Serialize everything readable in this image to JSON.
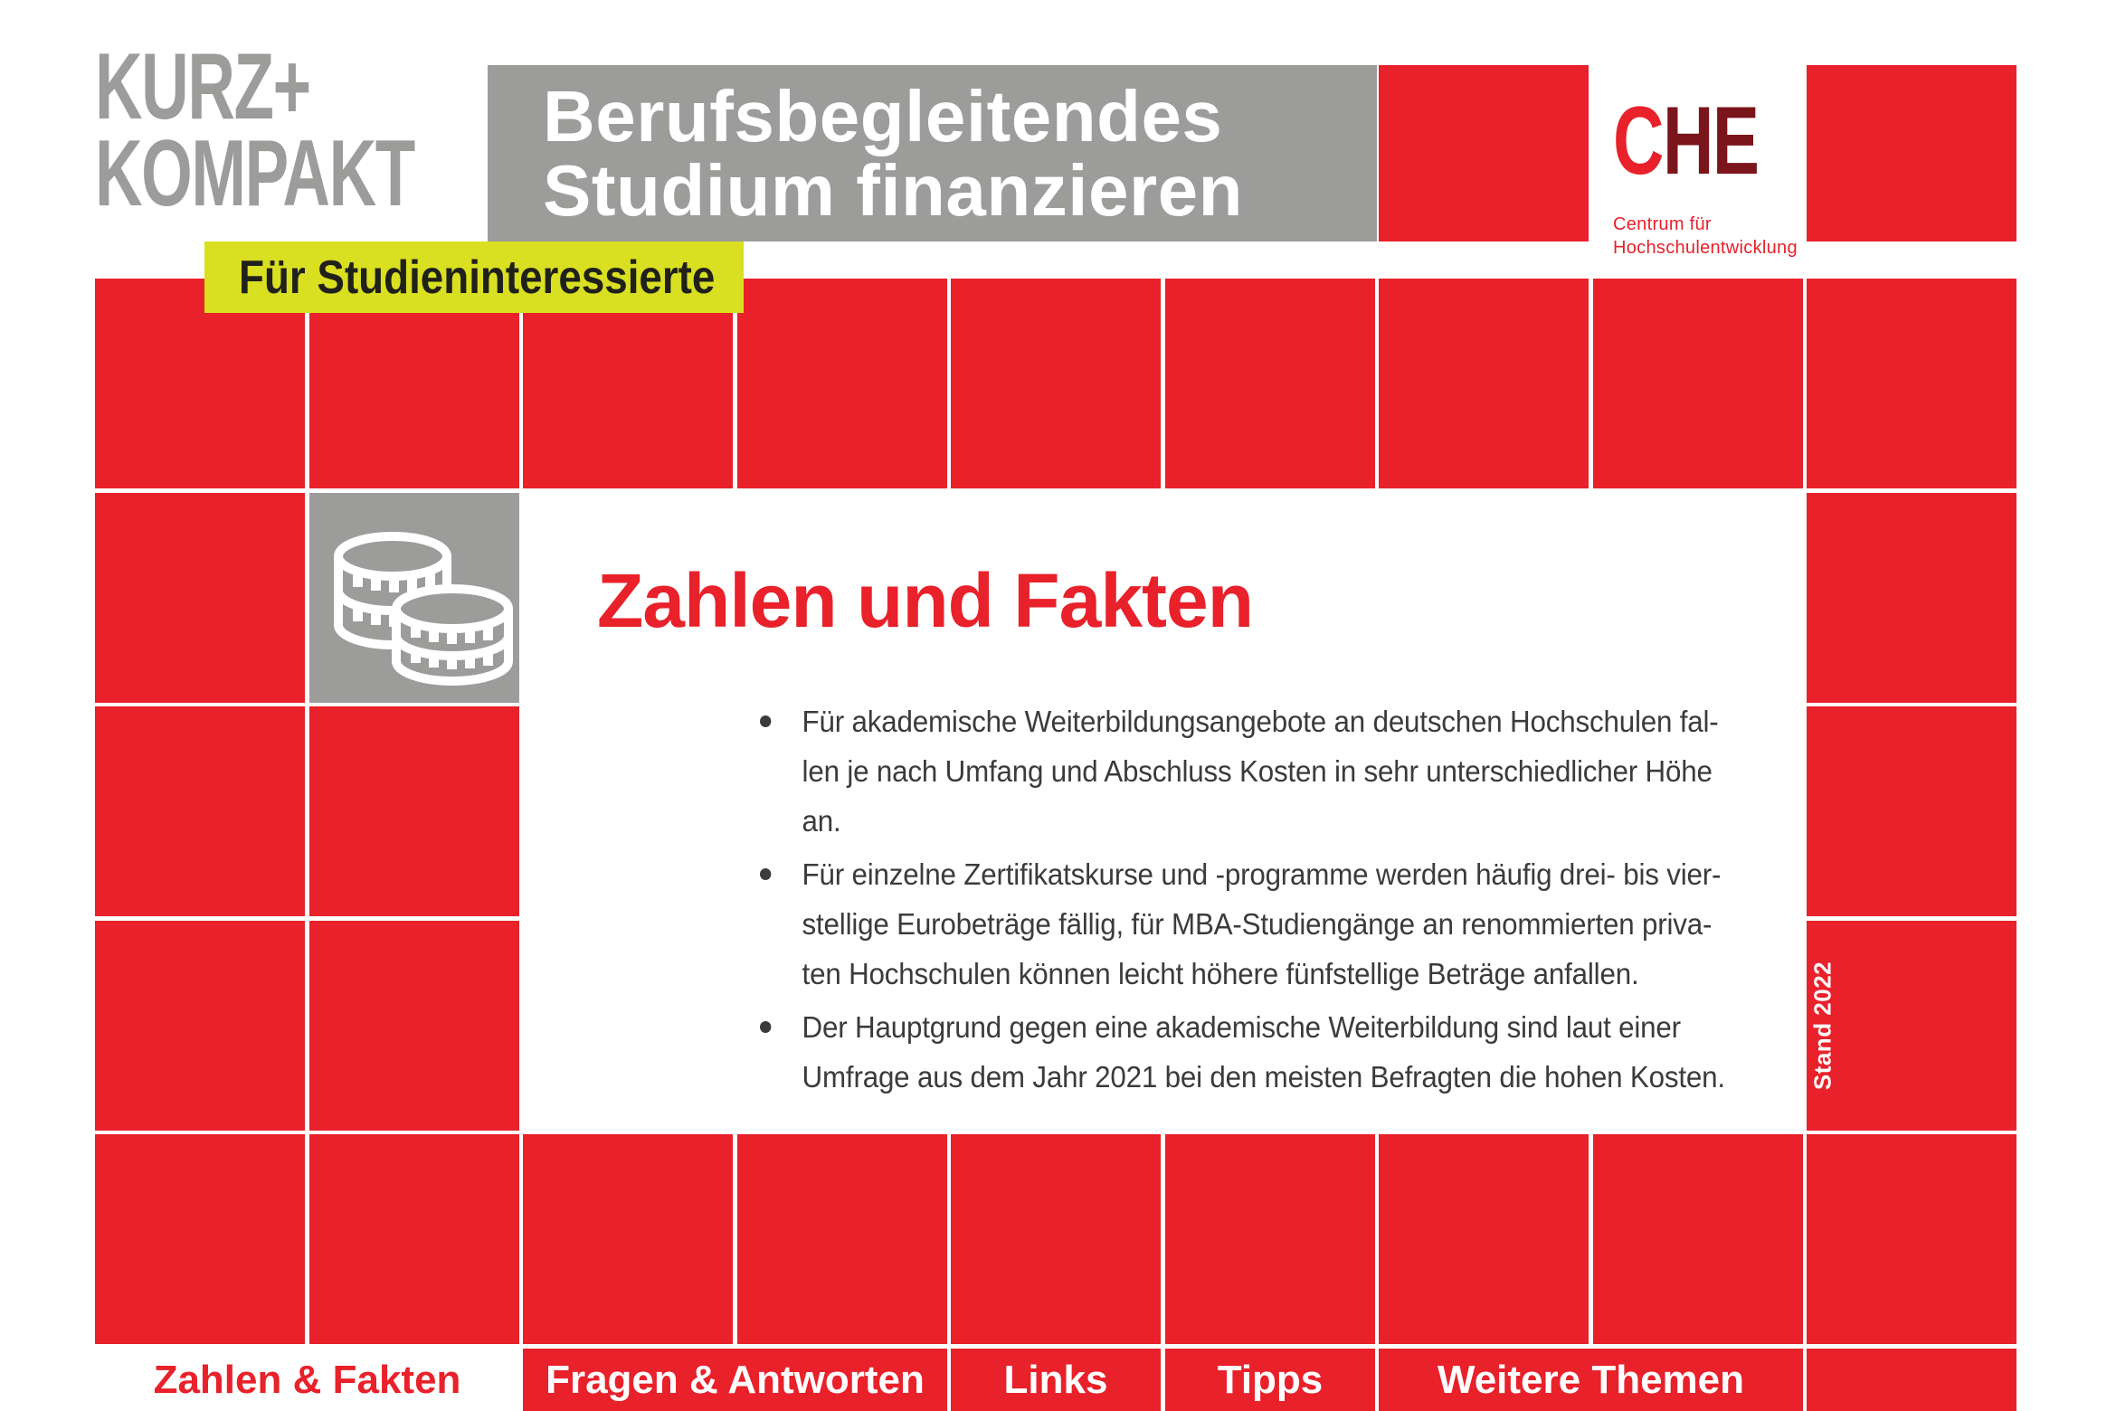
{
  "brand": {
    "line1": "KURZ+",
    "line2": "KOMPAKT"
  },
  "audience_tag": "Für Studieninteressierte",
  "doc_title": {
    "line1": "Berufsbegleitendes",
    "line2": "Studium finanzieren"
  },
  "che_logo": {
    "c": "C",
    "he": "HE",
    "subline1": "Centrum für",
    "subline2": "Hochschulentwicklung"
  },
  "section": {
    "icon": "coins-icon",
    "heading": "Zahlen und Fakten",
    "bullets": [
      {
        "lines": [
          "Für akademische Weiterbildungsangebote an deutschen Hochschulen fal-",
          "len je nach Umfang und Abschluss Kosten in sehr unterschiedlicher Höhe",
          "an."
        ]
      },
      {
        "lines": [
          "Für einzelne Zertifikatskurse und -programme werden häufig drei- bis vier-",
          "stellige Eurobeträge fällig, für MBA-Studiengänge an renommierten priva-",
          "ten Hochschulen können leicht höhere fünfstellige Beträge anfallen."
        ]
      },
      {
        "lines": [
          "Der Hauptgrund gegen eine akademische Weiterbildung sind laut einer",
          "Umfrage aus dem Jahr 2021 bei den meisten Befragten die hohen Kosten."
        ]
      }
    ]
  },
  "stand_note": "Stand 2022",
  "tabs": [
    {
      "label": "Zahlen & Fakten",
      "active": true
    },
    {
      "label": "Fragen & Antworten",
      "active": false
    },
    {
      "label": "Links",
      "active": false
    },
    {
      "label": "Tipps",
      "active": false
    },
    {
      "label": "Weitere Themen",
      "active": false
    }
  ],
  "colors": {
    "red": "#e8212a",
    "gray": "#9c9c9b",
    "yellow": "#d9df21",
    "maroon": "#7a151b",
    "body_text": "#3b3b3a",
    "tag_text": "#20211a"
  }
}
